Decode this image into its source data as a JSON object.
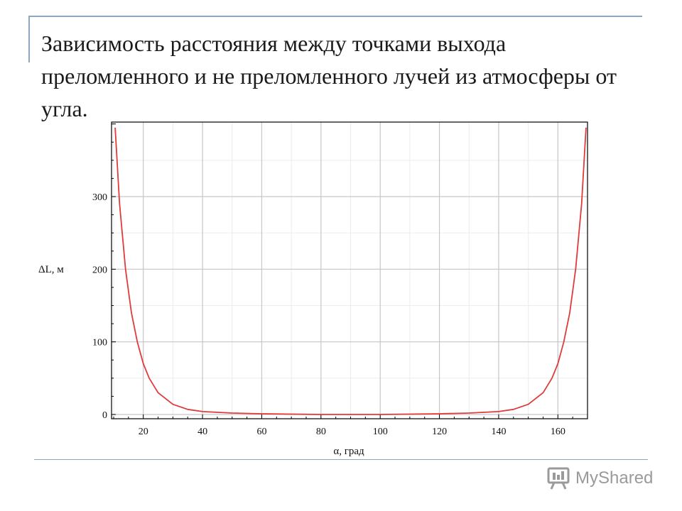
{
  "slide": {
    "title": "Зависимость расстояния между точками выхода преломленного и не преломленного лучей из атмосферы от угла."
  },
  "watermark": {
    "text": "MyShared"
  },
  "chart_data": {
    "type": "line",
    "xlabel": "α, град",
    "ylabel": "ΔL, м",
    "xlim": [
      10,
      170
    ],
    "ylim": [
      0,
      400
    ],
    "x_ticks": [
      20,
      40,
      60,
      80,
      100,
      120,
      140,
      160
    ],
    "y_ticks": [
      0,
      100,
      200,
      300
    ],
    "grid": true,
    "line_color": "#e03b3b",
    "series": [
      {
        "x": [
          10.5,
          12,
          14,
          16,
          18,
          20,
          22,
          25,
          30,
          35,
          40,
          50,
          60,
          70,
          80,
          90,
          100,
          110,
          120,
          130,
          140,
          145,
          150,
          155,
          158,
          160,
          162,
          164,
          166,
          168,
          169.5
        ],
        "values": [
          395,
          290,
          200,
          140,
          100,
          70,
          50,
          30,
          14,
          7,
          4,
          2,
          1,
          0.5,
          0,
          0,
          0,
          0.5,
          1,
          2,
          4,
          7,
          14,
          30,
          50,
          70,
          100,
          140,
          200,
          290,
          395
        ]
      }
    ]
  }
}
